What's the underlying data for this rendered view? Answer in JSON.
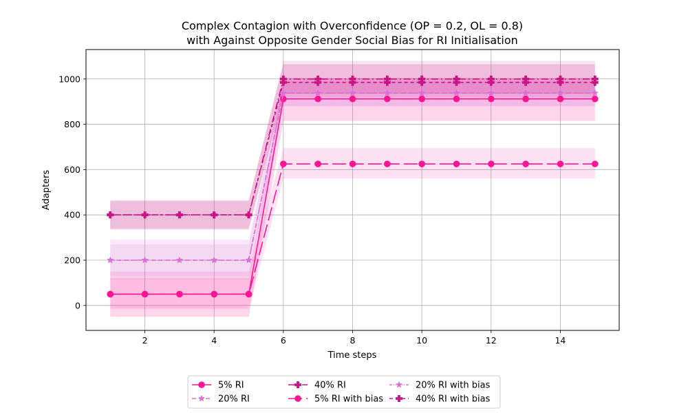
{
  "chart_data": {
    "type": "line",
    "title_line1": "Complex Contagion with Overconfidence (OP = 0.2, OL = 0.8)",
    "title_line2": "with Against Opposite Gender Social Bias for RI Initialisation",
    "xlabel": "Time steps",
    "ylabel": "Adapters",
    "xlim": [
      0.3,
      15.7
    ],
    "ylim": [
      -110,
      1130
    ],
    "xticks": [
      2,
      4,
      6,
      8,
      10,
      12,
      14
    ],
    "yticks": [
      0,
      200,
      400,
      600,
      800,
      1000
    ],
    "grid": true,
    "legend_position": "below chart, 3 columns",
    "x": [
      1,
      2,
      3,
      4,
      5,
      6,
      7,
      8,
      9,
      10,
      11,
      12,
      13,
      14,
      15
    ],
    "series": [
      {
        "name": "5% RI",
        "color": "#ff1493",
        "dash": "",
        "marker": "circle",
        "band_opacity": 0.18,
        "values": [
          50,
          50,
          50,
          50,
          50,
          912,
          912,
          912,
          912,
          912,
          912,
          912,
          912,
          912,
          912
        ],
        "band_lower": [
          -50,
          -50,
          -50,
          -50,
          -50,
          815,
          815,
          815,
          815,
          815,
          815,
          815,
          815,
          815,
          815
        ],
        "band_upper": [
          120,
          120,
          120,
          120,
          120,
          1005,
          1005,
          1005,
          1005,
          1005,
          1005,
          1005,
          1005,
          1005,
          1005
        ]
      },
      {
        "name": "20% RI",
        "color": "#da70d6",
        "dash": "6,4",
        "marker": "star",
        "band_opacity": 0.16,
        "values": [
          200,
          200,
          200,
          200,
          200,
          938,
          938,
          938,
          938,
          938,
          938,
          938,
          938,
          938,
          938
        ],
        "band_lower": [
          115,
          115,
          115,
          115,
          115,
          880,
          880,
          880,
          880,
          880,
          880,
          880,
          880,
          880,
          880
        ],
        "band_upper": [
          290,
          290,
          290,
          290,
          290,
          990,
          990,
          990,
          990,
          990,
          990,
          990,
          990,
          990,
          990
        ]
      },
      {
        "name": "40% RI",
        "color": "#c71585",
        "dash": "10,4,2,4",
        "marker": "plus",
        "band_opacity": 0.18,
        "values": [
          400,
          400,
          400,
          400,
          400,
          1000,
          1000,
          1000,
          1000,
          1000,
          1000,
          1000,
          1000,
          1000,
          1000
        ],
        "band_lower": [
          335,
          335,
          335,
          335,
          335,
          935,
          935,
          935,
          935,
          935,
          935,
          935,
          935,
          935,
          935
        ],
        "band_upper": [
          465,
          465,
          465,
          465,
          465,
          1065,
          1065,
          1065,
          1065,
          1065,
          1065,
          1065,
          1065,
          1065,
          1065
        ]
      },
      {
        "name": "5% RI with bias",
        "color": "#ff1493",
        "dash": "20,6",
        "marker": "circle",
        "band_opacity": 0.12,
        "values": [
          50,
          50,
          50,
          50,
          50,
          625,
          625,
          625,
          625,
          625,
          625,
          625,
          625,
          625,
          625
        ],
        "band_lower": [
          -15,
          -15,
          -15,
          -15,
          -15,
          560,
          560,
          560,
          560,
          560,
          560,
          560,
          560,
          560,
          560
        ],
        "band_upper": [
          150,
          150,
          150,
          150,
          150,
          695,
          695,
          695,
          695,
          695,
          695,
          695,
          695,
          695,
          695
        ]
      },
      {
        "name": "20% RI with bias",
        "color": "#da70d6",
        "dash": "4,2,1,2,1,2",
        "marker": "star",
        "band_opacity": 0.12,
        "values": [
          200,
          200,
          200,
          200,
          200,
          938,
          938,
          938,
          938,
          938,
          938,
          938,
          938,
          938,
          938
        ],
        "band_lower": [
          130,
          130,
          130,
          130,
          130,
          880,
          880,
          880,
          880,
          880,
          880,
          880,
          880,
          880,
          880
        ],
        "band_upper": [
          270,
          270,
          270,
          270,
          270,
          1000,
          1000,
          1000,
          1000,
          1000,
          1000,
          1000,
          1000,
          1000,
          1000
        ]
      },
      {
        "name": "40% RI with bias",
        "color": "#c71585",
        "dash": "5,4",
        "marker": "plus",
        "band_opacity": 0.12,
        "values": [
          400,
          400,
          400,
          400,
          400,
          985,
          985,
          985,
          985,
          985,
          985,
          985,
          985,
          985,
          985
        ],
        "band_lower": [
          340,
          340,
          340,
          340,
          340,
          920,
          920,
          920,
          920,
          920,
          920,
          920,
          920,
          920,
          920
        ],
        "band_upper": [
          460,
          460,
          460,
          460,
          460,
          1080,
          1080,
          1080,
          1080,
          1080,
          1080,
          1080,
          1080,
          1080,
          1080
        ]
      }
    ]
  }
}
